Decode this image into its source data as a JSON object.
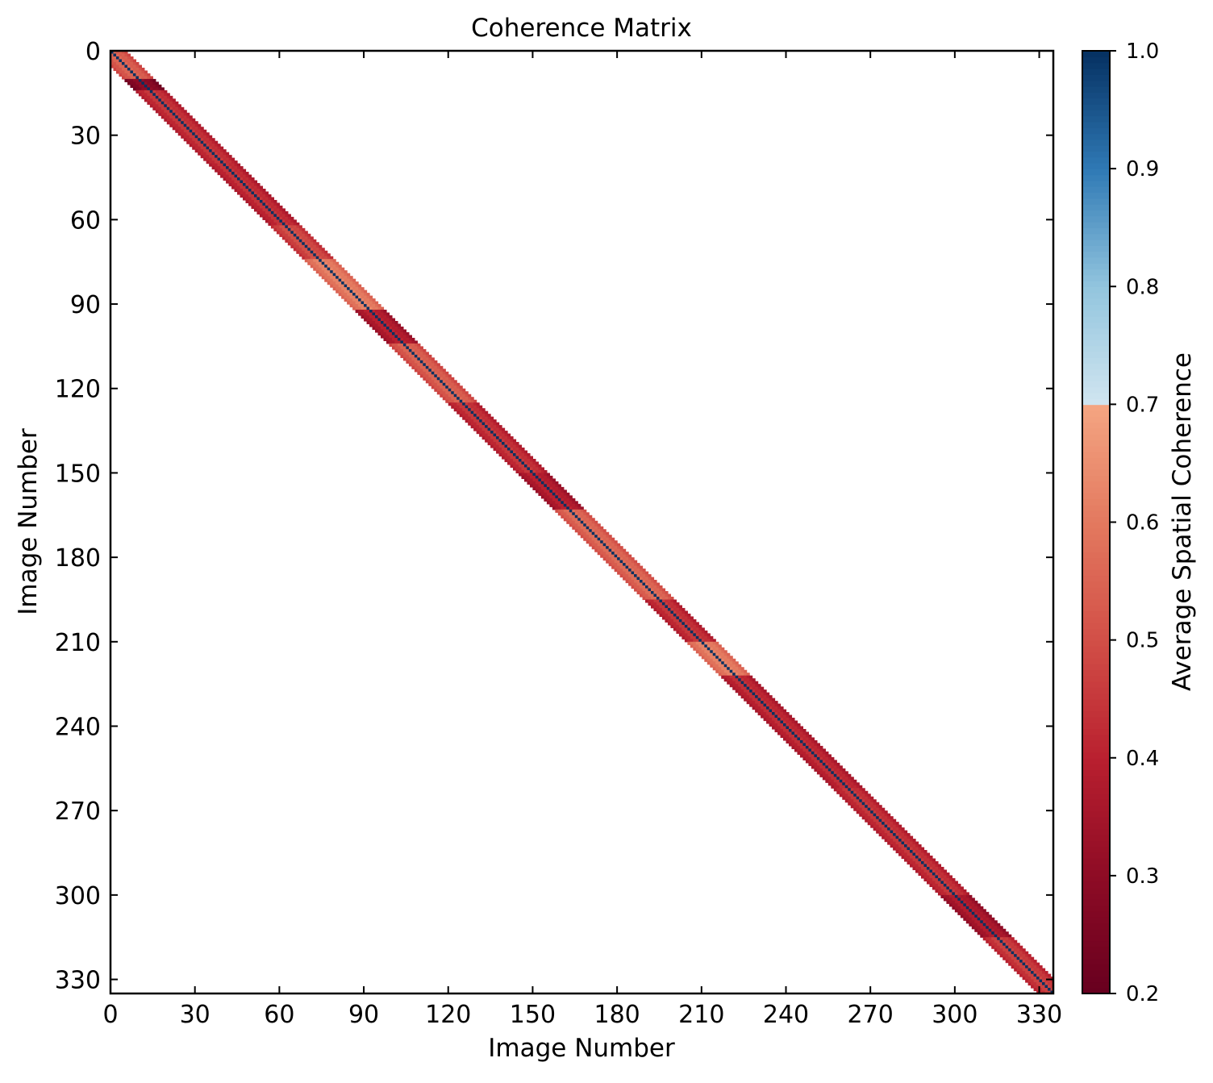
{
  "chart_data": {
    "type": "heatmap",
    "title": "Coherence Matrix",
    "xlabel": "Image Number",
    "ylabel": "Image Number",
    "colorbar_label": "Average Spatial Coherence",
    "matrix_size": 335,
    "xlim": [
      0,
      335
    ],
    "ylim": [
      335,
      0
    ],
    "x_ticks": [
      0,
      30,
      60,
      90,
      120,
      150,
      180,
      210,
      240,
      270,
      300,
      330
    ],
    "y_ticks": [
      0,
      30,
      60,
      90,
      120,
      150,
      180,
      210,
      240,
      270,
      300,
      330
    ],
    "color_range": [
      0.2,
      1.0
    ],
    "colorbar_ticks": [
      "0.2",
      "0.3",
      "0.4",
      "0.5",
      "0.6",
      "0.7",
      "0.8",
      "0.9",
      "1.0"
    ],
    "colormap": "RdBu",
    "colormap_stops": [
      {
        "value": 0.2,
        "color": "#67001f"
      },
      {
        "value": 0.3,
        "color": "#8e0b25"
      },
      {
        "value": 0.4,
        "color": "#b9202f"
      },
      {
        "value": 0.5,
        "color": "#d24f47"
      },
      {
        "value": 0.6,
        "color": "#e3795f"
      },
      {
        "value": 0.7,
        "color": "#f4a582"
      },
      {
        "value": 0.7,
        "color": "#d1e5f0"
      },
      {
        "value": 0.8,
        "color": "#92c5de"
      },
      {
        "value": 0.9,
        "color": "#2f79b5"
      },
      {
        "value": 1.0,
        "color": "#053061"
      }
    ],
    "diagonal_value": 1.0,
    "band": {
      "description_of_values": "nonzero only near the diagonal; off-band cells are empty (white)",
      "half_width_cells": 5,
      "segments": [
        {
          "start": 0,
          "end": 10,
          "value": 0.55
        },
        {
          "start": 10,
          "end": 14,
          "value": 0.3
        },
        {
          "start": 14,
          "end": 40,
          "value": 0.45
        },
        {
          "start": 40,
          "end": 62,
          "value": 0.44
        },
        {
          "start": 62,
          "end": 74,
          "value": 0.5
        },
        {
          "start": 74,
          "end": 92,
          "value": 0.62
        },
        {
          "start": 92,
          "end": 104,
          "value": 0.4
        },
        {
          "start": 104,
          "end": 125,
          "value": 0.55
        },
        {
          "start": 125,
          "end": 150,
          "value": 0.45
        },
        {
          "start": 150,
          "end": 163,
          "value": 0.4
        },
        {
          "start": 163,
          "end": 195,
          "value": 0.57
        },
        {
          "start": 195,
          "end": 210,
          "value": 0.45
        },
        {
          "start": 210,
          "end": 222,
          "value": 0.62
        },
        {
          "start": 222,
          "end": 262,
          "value": 0.43
        },
        {
          "start": 262,
          "end": 300,
          "value": 0.45
        },
        {
          "start": 300,
          "end": 315,
          "value": 0.38
        },
        {
          "start": 315,
          "end": 335,
          "value": 0.47
        }
      ]
    }
  }
}
